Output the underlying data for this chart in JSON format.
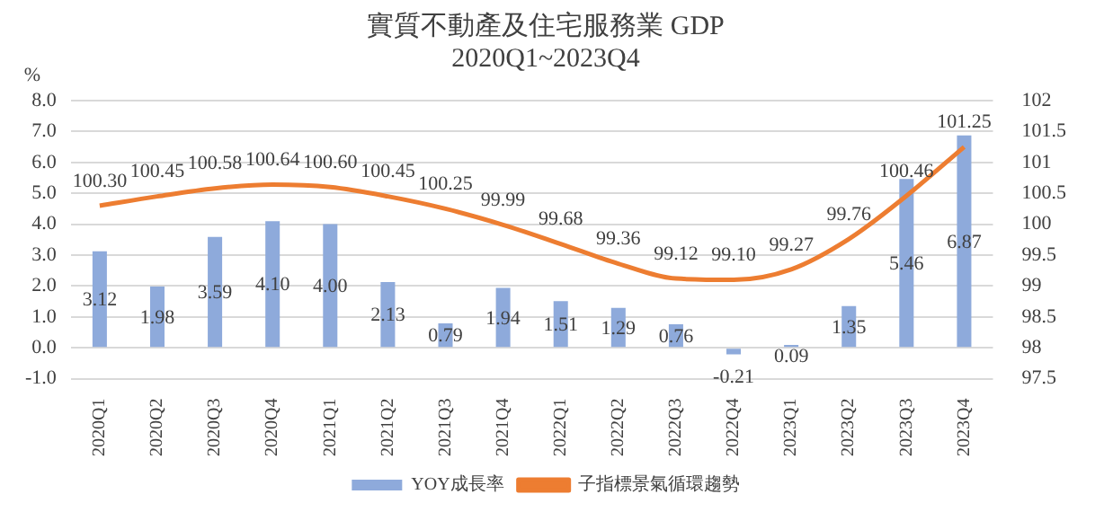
{
  "chart_data": {
    "type": "bar",
    "title": "實質不動產及住宅服務業 GDP",
    "subtitle": "2020Q1~2023Q4",
    "ylabel": "%",
    "categories": [
      "2020Q1",
      "2020Q2",
      "2020Q3",
      "2020Q4",
      "2021Q1",
      "2021Q2",
      "2021Q3",
      "2021Q4",
      "2022Q1",
      "2022Q2",
      "2022Q3",
      "2022Q4",
      "2023Q1",
      "2023Q2",
      "2023Q3",
      "2023Q4"
    ],
    "series": [
      {
        "name": "YOY成長率",
        "type": "bar",
        "color": "#8eaadb",
        "values": [
          3.12,
          1.98,
          3.59,
          4.1,
          4.0,
          2.13,
          0.79,
          1.94,
          1.51,
          1.29,
          0.76,
          -0.21,
          0.09,
          1.35,
          5.46,
          6.87
        ],
        "value_labels": [
          "3.12",
          "1.98",
          "3.59",
          "4.10",
          "4.00",
          "2.13",
          "0.79",
          "1.94",
          "1.51",
          "1.29",
          "0.76",
          "-0.21",
          "0.09",
          "1.35",
          "5.46",
          "6.87"
        ]
      },
      {
        "name": "子指標景氣循環趨勢",
        "type": "line",
        "axis": "y2",
        "color": "#ed7d31",
        "values": [
          100.3,
          100.45,
          100.58,
          100.64,
          100.6,
          100.45,
          100.25,
          99.99,
          99.68,
          99.36,
          99.12,
          99.1,
          99.27,
          99.76,
          100.46,
          101.25
        ],
        "value_labels": [
          "100.30",
          "100.45",
          "100.58",
          "100.64",
          "100.60",
          "100.45",
          "100.25",
          "99.99",
          "99.68",
          "99.36",
          "99.12",
          "99.10",
          "99.27",
          "99.76",
          "100.46",
          "101.25"
        ]
      }
    ],
    "ylim": [
      -1,
      8
    ],
    "yticks": [
      {
        "value": -1,
        "label": "-1.0"
      },
      {
        "value": 0,
        "label": "0.0"
      },
      {
        "value": 1,
        "label": "1.0"
      },
      {
        "value": 2,
        "label": "2.0"
      },
      {
        "value": 3,
        "label": "3.0"
      },
      {
        "value": 4,
        "label": "4.0"
      },
      {
        "value": 5,
        "label": "5.0"
      },
      {
        "value": 6,
        "label": "6.0"
      },
      {
        "value": 7,
        "label": "7.0"
      },
      {
        "value": 8,
        "label": "8.0"
      }
    ],
    "y2lim": [
      97.5,
      102
    ],
    "y2ticks": [
      97.5,
      98,
      98.5,
      99,
      99.5,
      100,
      100.5,
      101,
      101.5,
      102
    ],
    "grid": "y",
    "legend": "bottom",
    "marker": "none",
    "line_style": "solid"
  }
}
